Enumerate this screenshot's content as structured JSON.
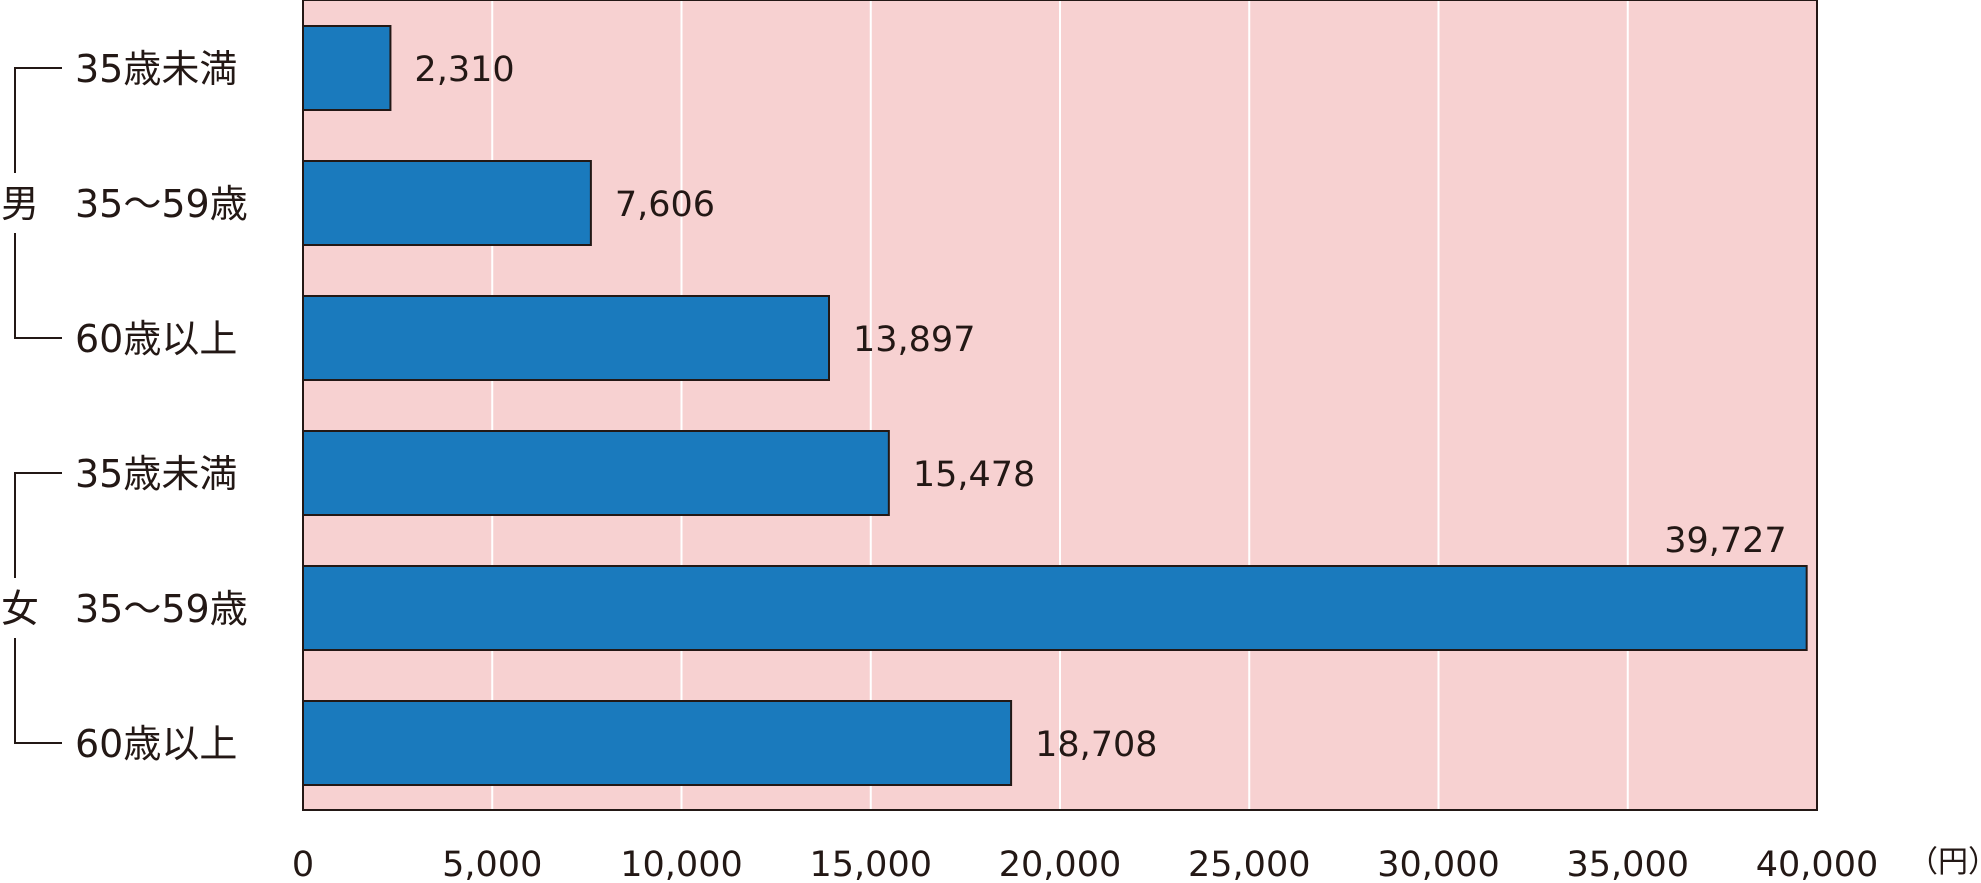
{
  "chart_data": {
    "type": "bar",
    "orientation": "horizontal",
    "groups": [
      {
        "label": "男",
        "categories": [
          "35歳未満",
          "35～59歳",
          "60歳以上"
        ],
        "values": [
          2310,
          7606,
          13897
        ],
        "value_labels": [
          "2,310",
          "7,606",
          "13,897"
        ]
      },
      {
        "label": "女",
        "categories": [
          "35歳未満",
          "35～59歳",
          "60歳以上"
        ],
        "values": [
          15478,
          39727,
          18708
        ],
        "value_labels": [
          "15,478",
          "39,727",
          "18,708"
        ]
      }
    ],
    "xlim": [
      0,
      40000
    ],
    "xticks": [
      0,
      5000,
      10000,
      15000,
      20000,
      25000,
      30000,
      35000,
      40000
    ],
    "xtick_labels": [
      "0",
      "5,000",
      "10,000",
      "15,000",
      "20,000",
      "25,000",
      "30,000",
      "35,000",
      "40,000"
    ],
    "unit_label": "（円）",
    "grid": true,
    "colors": {
      "bar": "#1a7abd",
      "bar_stroke": "#231815",
      "plot_background": "#f7d1d1",
      "grid": "#ffffff",
      "text": "#231815"
    }
  }
}
